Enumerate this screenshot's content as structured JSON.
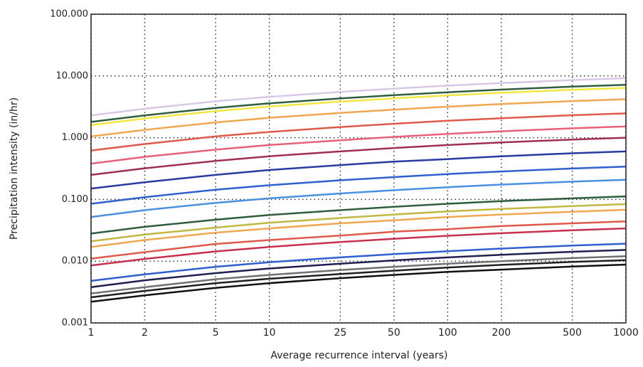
{
  "chart_data": {
    "type": "line",
    "xlabel": "Average recurrence interval (years)",
    "ylabel": "Precipitation intensity (in/hr)",
    "x": [
      1,
      2,
      5,
      10,
      25,
      50,
      100,
      200,
      500,
      1000
    ],
    "xlim": [
      1,
      1000
    ],
    "xticks": [
      1,
      2,
      5,
      10,
      25,
      50,
      100,
      200,
      500,
      1000
    ],
    "xscale": "log",
    "ylim": [
      0.001,
      100
    ],
    "yscale": "log",
    "yticks": [
      {
        "value": 0.001,
        "label": "0.001"
      },
      {
        "value": 0.01,
        "label": "0.010"
      },
      {
        "value": 0.1,
        "label": "0.100"
      },
      {
        "value": 1,
        "label": "1.000"
      },
      {
        "value": 10,
        "label": "10.000"
      },
      {
        "value": 100,
        "label": "100.000"
      }
    ],
    "grid": true,
    "series": [
      {
        "color": "#d8c8e8",
        "values": [
          2.3,
          2.94,
          3.89,
          4.6,
          5.52,
          6.23,
          6.97,
          7.68,
          8.58,
          9.2
        ]
      },
      {
        "color": "#2e5e3e",
        "values": [
          1.8,
          2.3,
          3.04,
          3.6,
          4.32,
          4.88,
          5.45,
          6.01,
          6.71,
          7.2
        ]
      },
      {
        "color": "#f2e640",
        "values": [
          1.6,
          2.05,
          2.7,
          3.2,
          3.84,
          4.34,
          4.85,
          5.34,
          5.97,
          6.4
        ]
      },
      {
        "color": "#f0a850",
        "values": [
          1.05,
          1.34,
          1.77,
          2.1,
          2.52,
          2.85,
          3.18,
          3.51,
          3.92,
          4.2
        ]
      },
      {
        "color": "#e05a4a",
        "values": [
          0.62,
          0.79,
          1.05,
          1.24,
          1.49,
          1.68,
          1.88,
          2.07,
          2.31,
          2.48
        ]
      },
      {
        "color": "#e8607a",
        "values": [
          0.38,
          0.49,
          0.64,
          0.76,
          0.91,
          1.03,
          1.15,
          1.27,
          1.42,
          1.52
        ]
      },
      {
        "color": "#a03050",
        "values": [
          0.25,
          0.32,
          0.42,
          0.5,
          0.6,
          0.68,
          0.76,
          0.84,
          0.93,
          1.0
        ]
      },
      {
        "color": "#2a3aa0",
        "values": [
          0.15,
          0.19,
          0.25,
          0.3,
          0.36,
          0.41,
          0.45,
          0.5,
          0.56,
          0.6
        ]
      },
      {
        "color": "#3060d0",
        "values": [
          0.085,
          0.109,
          0.144,
          0.17,
          0.204,
          0.23,
          0.258,
          0.284,
          0.317,
          0.34
        ]
      },
      {
        "color": "#4a90e0",
        "values": [
          0.052,
          0.067,
          0.088,
          0.104,
          0.125,
          0.141,
          0.158,
          0.174,
          0.194,
          0.208
        ]
      },
      {
        "color": "#2e5e3e",
        "values": [
          0.028,
          0.036,
          0.047,
          0.056,
          0.067,
          0.076,
          0.085,
          0.094,
          0.104,
          0.112
        ]
      },
      {
        "color": "#c0b840",
        "values": [
          0.021,
          0.027,
          0.035,
          0.042,
          0.05,
          0.057,
          0.064,
          0.07,
          0.078,
          0.084
        ]
      },
      {
        "color": "#f0a850",
        "values": [
          0.017,
          0.022,
          0.029,
          0.034,
          0.041,
          0.046,
          0.052,
          0.057,
          0.063,
          0.068
        ]
      },
      {
        "color": "#e05a4a",
        "values": [
          0.011,
          0.014,
          0.019,
          0.022,
          0.026,
          0.03,
          0.033,
          0.037,
          0.041,
          0.044
        ]
      },
      {
        "color": "#c83050",
        "values": [
          0.0085,
          0.0109,
          0.0144,
          0.017,
          0.0204,
          0.023,
          0.0258,
          0.0284,
          0.0317,
          0.034
        ]
      },
      {
        "color": "#3060d0",
        "values": [
          0.0048,
          0.0061,
          0.0081,
          0.0096,
          0.0115,
          0.013,
          0.0145,
          0.016,
          0.0179,
          0.0192
        ]
      },
      {
        "color": "#202050",
        "values": [
          0.0038,
          0.0049,
          0.0064,
          0.0076,
          0.0091,
          0.0103,
          0.0115,
          0.0127,
          0.0142,
          0.0152
        ]
      },
      {
        "color": "#707070",
        "values": [
          0.003,
          0.0038,
          0.0051,
          0.006,
          0.0072,
          0.0081,
          0.0091,
          0.01,
          0.0112,
          0.012
        ]
      },
      {
        "color": "#202020",
        "values": [
          0.0026,
          0.0033,
          0.0044,
          0.0052,
          0.0062,
          0.007,
          0.0079,
          0.0087,
          0.0097,
          0.0104
        ]
      },
      {
        "color": "#101010",
        "values": [
          0.0022,
          0.0028,
          0.0037,
          0.0044,
          0.0053,
          0.006,
          0.0067,
          0.0073,
          0.0082,
          0.0088
        ]
      }
    ]
  }
}
